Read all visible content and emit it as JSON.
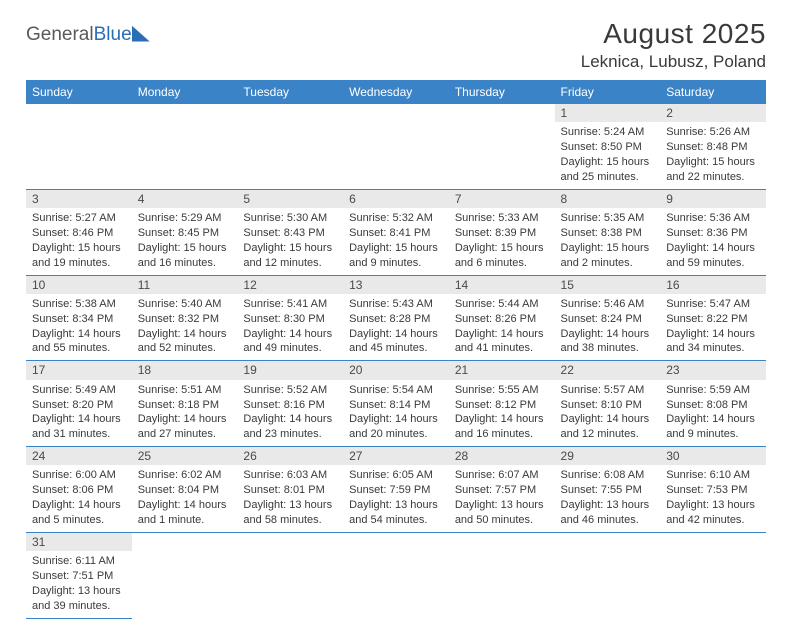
{
  "logo": {
    "part1": "General",
    "part2": "Blue"
  },
  "header": {
    "title": "August 2025",
    "location": "Leknica, Lubusz, Poland"
  },
  "colors": {
    "header_bg": "#3b83c7",
    "header_fg": "#ffffff",
    "daynum_bg": "#e9e9e9",
    "rule": "#3b83c7",
    "text": "#3a3a3a"
  },
  "dow": [
    "Sunday",
    "Monday",
    "Tuesday",
    "Wednesday",
    "Thursday",
    "Friday",
    "Saturday"
  ],
  "weeks": [
    [
      null,
      null,
      null,
      null,
      null,
      {
        "n": "1",
        "sr": "5:24 AM",
        "ss": "8:50 PM",
        "dl": "15 hours and 25 minutes."
      },
      {
        "n": "2",
        "sr": "5:26 AM",
        "ss": "8:48 PM",
        "dl": "15 hours and 22 minutes."
      }
    ],
    [
      {
        "n": "3",
        "sr": "5:27 AM",
        "ss": "8:46 PM",
        "dl": "15 hours and 19 minutes."
      },
      {
        "n": "4",
        "sr": "5:29 AM",
        "ss": "8:45 PM",
        "dl": "15 hours and 16 minutes."
      },
      {
        "n": "5",
        "sr": "5:30 AM",
        "ss": "8:43 PM",
        "dl": "15 hours and 12 minutes."
      },
      {
        "n": "6",
        "sr": "5:32 AM",
        "ss": "8:41 PM",
        "dl": "15 hours and 9 minutes."
      },
      {
        "n": "7",
        "sr": "5:33 AM",
        "ss": "8:39 PM",
        "dl": "15 hours and 6 minutes."
      },
      {
        "n": "8",
        "sr": "5:35 AM",
        "ss": "8:38 PM",
        "dl": "15 hours and 2 minutes."
      },
      {
        "n": "9",
        "sr": "5:36 AM",
        "ss": "8:36 PM",
        "dl": "14 hours and 59 minutes."
      }
    ],
    [
      {
        "n": "10",
        "sr": "5:38 AM",
        "ss": "8:34 PM",
        "dl": "14 hours and 55 minutes."
      },
      {
        "n": "11",
        "sr": "5:40 AM",
        "ss": "8:32 PM",
        "dl": "14 hours and 52 minutes."
      },
      {
        "n": "12",
        "sr": "5:41 AM",
        "ss": "8:30 PM",
        "dl": "14 hours and 49 minutes."
      },
      {
        "n": "13",
        "sr": "5:43 AM",
        "ss": "8:28 PM",
        "dl": "14 hours and 45 minutes."
      },
      {
        "n": "14",
        "sr": "5:44 AM",
        "ss": "8:26 PM",
        "dl": "14 hours and 41 minutes."
      },
      {
        "n": "15",
        "sr": "5:46 AM",
        "ss": "8:24 PM",
        "dl": "14 hours and 38 minutes."
      },
      {
        "n": "16",
        "sr": "5:47 AM",
        "ss": "8:22 PM",
        "dl": "14 hours and 34 minutes."
      }
    ],
    [
      {
        "n": "17",
        "sr": "5:49 AM",
        "ss": "8:20 PM",
        "dl": "14 hours and 31 minutes."
      },
      {
        "n": "18",
        "sr": "5:51 AM",
        "ss": "8:18 PM",
        "dl": "14 hours and 27 minutes."
      },
      {
        "n": "19",
        "sr": "5:52 AM",
        "ss": "8:16 PM",
        "dl": "14 hours and 23 minutes."
      },
      {
        "n": "20",
        "sr": "5:54 AM",
        "ss": "8:14 PM",
        "dl": "14 hours and 20 minutes."
      },
      {
        "n": "21",
        "sr": "5:55 AM",
        "ss": "8:12 PM",
        "dl": "14 hours and 16 minutes."
      },
      {
        "n": "22",
        "sr": "5:57 AM",
        "ss": "8:10 PM",
        "dl": "14 hours and 12 minutes."
      },
      {
        "n": "23",
        "sr": "5:59 AM",
        "ss": "8:08 PM",
        "dl": "14 hours and 9 minutes."
      }
    ],
    [
      {
        "n": "24",
        "sr": "6:00 AM",
        "ss": "8:06 PM",
        "dl": "14 hours and 5 minutes."
      },
      {
        "n": "25",
        "sr": "6:02 AM",
        "ss": "8:04 PM",
        "dl": "14 hours and 1 minute."
      },
      {
        "n": "26",
        "sr": "6:03 AM",
        "ss": "8:01 PM",
        "dl": "13 hours and 58 minutes."
      },
      {
        "n": "27",
        "sr": "6:05 AM",
        "ss": "7:59 PM",
        "dl": "13 hours and 54 minutes."
      },
      {
        "n": "28",
        "sr": "6:07 AM",
        "ss": "7:57 PM",
        "dl": "13 hours and 50 minutes."
      },
      {
        "n": "29",
        "sr": "6:08 AM",
        "ss": "7:55 PM",
        "dl": "13 hours and 46 minutes."
      },
      {
        "n": "30",
        "sr": "6:10 AM",
        "ss": "7:53 PM",
        "dl": "13 hours and 42 minutes."
      }
    ],
    [
      {
        "n": "31",
        "sr": "6:11 AM",
        "ss": "7:51 PM",
        "dl": "13 hours and 39 minutes."
      },
      null,
      null,
      null,
      null,
      null,
      null
    ]
  ],
  "labels": {
    "sunrise": "Sunrise:",
    "sunset": "Sunset:",
    "daylight": "Daylight:"
  }
}
